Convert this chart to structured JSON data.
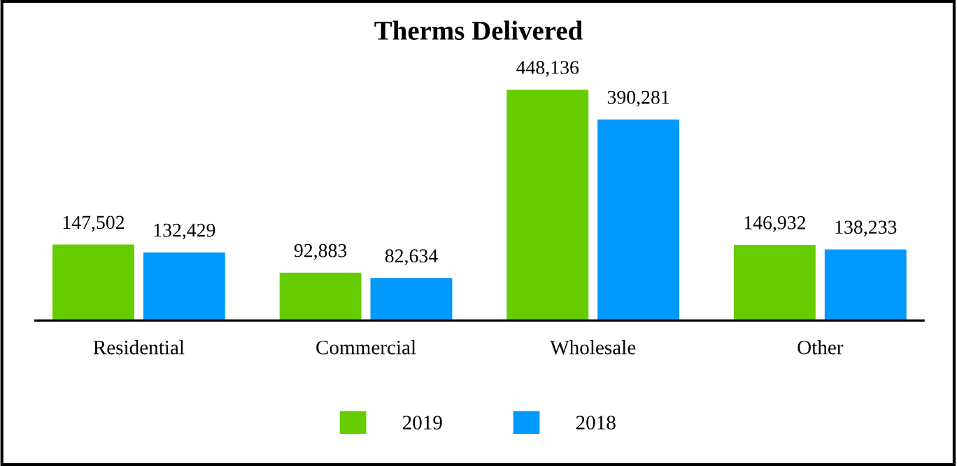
{
  "chart_data": {
    "type": "bar",
    "title": "Therms Delivered",
    "categories": [
      "Residential",
      "Commercial",
      "Wholesale",
      "Other"
    ],
    "series": [
      {
        "name": "2019",
        "color": "#66cc00",
        "values": [
          147502,
          92883,
          448136,
          146932
        ],
        "value_labels": [
          "147,502",
          "92,883",
          "448,136",
          "146,932"
        ]
      },
      {
        "name": "2018",
        "color": "#0099ff",
        "values": [
          132429,
          82634,
          390281,
          138233
        ],
        "value_labels": [
          "132,429",
          "82,634",
          "390,281",
          "138,233"
        ]
      }
    ],
    "legend": "bottom",
    "grid": false
  }
}
